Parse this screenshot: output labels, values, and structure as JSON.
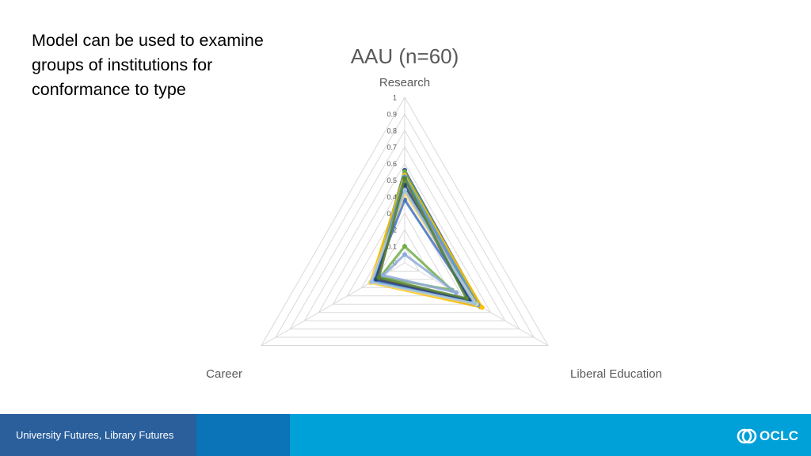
{
  "slide": {
    "text_lines": [
      "Model can be used to examine",
      "groups of institutions for",
      "conformance to type"
    ]
  },
  "footer": {
    "text": "University Futures, Library Futures",
    "colors": {
      "bar": "#00a0d8",
      "segment_dark": "#2a5f9c",
      "segment_mid": "#0b73b8"
    }
  },
  "logo": {
    "text": "OCLC",
    "icon": "oclc-logo-icon"
  },
  "chart_data": {
    "type": "radar",
    "title": "AAU (n=60)",
    "axes": [
      "Research",
      "Liberal Education",
      "Career"
    ],
    "ticks": [
      "0",
      "0.1",
      "0.2",
      "0.3",
      "0.4",
      "0.5",
      "0.6",
      "0.7",
      "0.8",
      "0.9",
      "1"
    ],
    "range": [
      0,
      1
    ],
    "grid": true,
    "legend": "none",
    "series": [
      {
        "values": [
          0.56,
          0.53,
          0.22
        ],
        "color": "#2f5597"
      },
      {
        "values": [
          0.5,
          0.5,
          0.22
        ],
        "color": "#4472c4"
      },
      {
        "values": [
          0.55,
          0.52,
          0.23
        ],
        "color": "#70ad47"
      },
      {
        "values": [
          0.53,
          0.54,
          0.24
        ],
        "color": "#ffc000"
      },
      {
        "values": [
          0.52,
          0.51,
          0.21
        ],
        "color": "#5b9bd5"
      },
      {
        "values": [
          0.49,
          0.48,
          0.2
        ],
        "color": "#a5a5a5"
      },
      {
        "values": [
          0.45,
          0.46,
          0.19
        ],
        "color": "#ed7d31"
      },
      {
        "values": [
          0.1,
          0.33,
          0.17
        ],
        "color": "#70ad47"
      },
      {
        "values": [
          0.05,
          0.36,
          0.15
        ],
        "color": "#8faadc"
      },
      {
        "values": [
          0.38,
          0.47,
          0.22
        ],
        "color": "#4472c4"
      },
      {
        "values": [
          0.42,
          0.5,
          0.24
        ],
        "color": "#ffd966"
      },
      {
        "values": [
          0.47,
          0.45,
          0.2
        ],
        "color": "#264478"
      },
      {
        "values": [
          0.44,
          0.49,
          0.23
        ],
        "color": "#9dc3e6"
      },
      {
        "values": [
          0.51,
          0.43,
          0.18
        ],
        "color": "#548235"
      }
    ]
  }
}
